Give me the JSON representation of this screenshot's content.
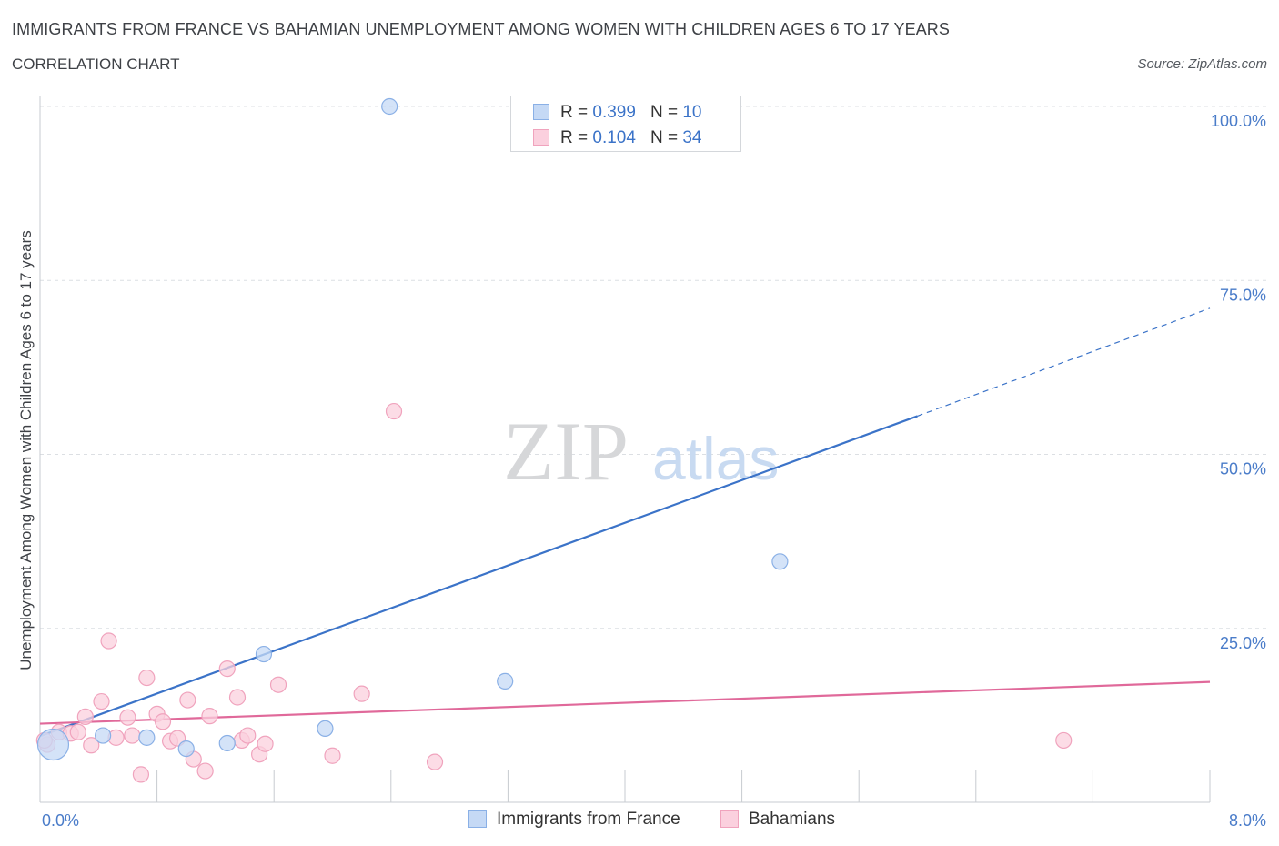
{
  "header": {
    "title": "IMMIGRANTS FROM FRANCE VS BAHAMIAN UNEMPLOYMENT AMONG WOMEN WITH CHILDREN AGES 6 TO 17 YEARS",
    "subtitle": "CORRELATION CHART",
    "source": "Source: ZipAtlas.com"
  },
  "watermark": {
    "zip": "ZIP",
    "atlas": "atlas"
  },
  "colors": {
    "blue_stroke": "#8ab0e6",
    "blue_fill": "#c5d9f5",
    "blue_line": "#3b73c8",
    "pink_stroke": "#f0a3bd",
    "pink_fill": "#fbd0de",
    "pink_line": "#e0699a"
  },
  "legend": {
    "rows": [
      {
        "r_label": "R =",
        "r_value": "0.399",
        "n_label": "N =",
        "n_value": "10"
      },
      {
        "r_label": "R =",
        "r_value": "0.104",
        "n_label": "N =",
        "n_value": "34"
      }
    ]
  },
  "bottom_legend": {
    "series1": "Immigrants from France",
    "series2": "Bahamians"
  },
  "chart_data": {
    "type": "scatter",
    "title": "IMMIGRANTS FROM FRANCE VS BAHAMIAN UNEMPLOYMENT AMONG WOMEN WITH CHILDREN AGES 6 TO 17 YEARS",
    "xlabel": "",
    "ylabel": "Unemployment Among Women with Children Ages 6 to 17 years",
    "xlim": [
      0,
      8
    ],
    "ylim": [
      0,
      100
    ],
    "x_tick_labels": [
      "0.0%",
      "8.0%"
    ],
    "y_tick_values": [
      25,
      50,
      75,
      100
    ],
    "y_tick_labels": [
      "25.0%",
      "50.0%",
      "75.0%",
      "100.0%"
    ],
    "grid": true,
    "series": [
      {
        "name": "Immigrants from France",
        "color": "blue",
        "points": [
          {
            "x": 0.09,
            "y": 8.3,
            "big": true
          },
          {
            "x": 0.43,
            "y": 9.6
          },
          {
            "x": 0.73,
            "y": 9.3
          },
          {
            "x": 1.0,
            "y": 7.7
          },
          {
            "x": 1.28,
            "y": 8.5
          },
          {
            "x": 1.53,
            "y": 21.3
          },
          {
            "x": 1.95,
            "y": 10.6
          },
          {
            "x": 2.39,
            "y": 100.0
          },
          {
            "x": 3.18,
            "y": 17.4
          },
          {
            "x": 5.06,
            "y": 34.6
          }
        ],
        "trend": {
          "x1": 0.0,
          "y1": 9.5,
          "x2": 6.0,
          "y2": 55.5,
          "dash_x2": 8.0,
          "dash_y2": 71.0
        }
      },
      {
        "name": "Bahamians",
        "color": "pink",
        "points": [
          {
            "x": 0.05,
            "y": 8.3
          },
          {
            "x": 0.13,
            "y": 10.1
          },
          {
            "x": 0.21,
            "y": 9.9
          },
          {
            "x": 0.26,
            "y": 10.1
          },
          {
            "x": 0.31,
            "y": 12.3
          },
          {
            "x": 0.35,
            "y": 8.2
          },
          {
            "x": 0.42,
            "y": 14.5
          },
          {
            "x": 0.47,
            "y": 23.2
          },
          {
            "x": 0.52,
            "y": 9.3
          },
          {
            "x": 0.6,
            "y": 12.2
          },
          {
            "x": 0.63,
            "y": 9.6
          },
          {
            "x": 0.69,
            "y": 4.0
          },
          {
            "x": 0.73,
            "y": 17.9
          },
          {
            "x": 0.8,
            "y": 12.7
          },
          {
            "x": 0.84,
            "y": 11.6
          },
          {
            "x": 0.89,
            "y": 8.8
          },
          {
            "x": 0.94,
            "y": 9.2
          },
          {
            "x": 1.01,
            "y": 14.7
          },
          {
            "x": 1.05,
            "y": 6.2
          },
          {
            "x": 1.13,
            "y": 4.5
          },
          {
            "x": 1.16,
            "y": 12.4
          },
          {
            "x": 1.28,
            "y": 19.2
          },
          {
            "x": 1.35,
            "y": 15.1
          },
          {
            "x": 1.38,
            "y": 8.9
          },
          {
            "x": 1.42,
            "y": 9.6
          },
          {
            "x": 1.5,
            "y": 6.9
          },
          {
            "x": 1.54,
            "y": 8.4
          },
          {
            "x": 1.63,
            "y": 16.9
          },
          {
            "x": 2.0,
            "y": 6.7
          },
          {
            "x": 2.2,
            "y": 15.6
          },
          {
            "x": 2.42,
            "y": 56.2
          },
          {
            "x": 2.7,
            "y": 5.8
          },
          {
            "x": 7.0,
            "y": 8.9
          },
          {
            "x": 0.03,
            "y": 8.9
          }
        ],
        "trend": {
          "x1": 0.0,
          "y1": 11.3,
          "x2": 8.0,
          "y2": 17.3
        }
      }
    ]
  }
}
